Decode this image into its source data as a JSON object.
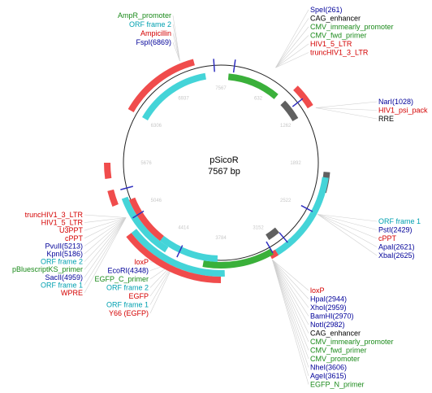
{
  "plasmid": {
    "name": "pSicoR",
    "length": "7567 bp"
  },
  "ticks": [
    "7567",
    "632",
    "1262",
    "1892",
    "2522",
    "3152",
    "3784",
    "4414",
    "5046",
    "5676",
    "6306",
    "6937"
  ],
  "colors": {
    "promoter": "#1a8a1a",
    "enzyme": "#000099",
    "orf": "#00a0b0",
    "marker": "#d40000",
    "misc": "#000000",
    "feature_orf": "#44d4d8",
    "feature_red": "#f04c4c",
    "feature_green": "#3ab03a",
    "feature_gray": "#606060"
  },
  "labels_top_left": [
    {
      "text": "AmpR_promoter",
      "kind": "promoter"
    },
    {
      "text": "ORF frame 2",
      "kind": "orf"
    },
    {
      "text": "Ampicillin",
      "kind": "marker"
    },
    {
      "text": "FspI(6869)",
      "kind": "enzyme"
    }
  ],
  "labels_top_right": [
    {
      "text": "SpeI(261)",
      "kind": "enzyme"
    },
    {
      "text": "CAG_enhancer",
      "kind": "misc"
    },
    {
      "text": "CMV_immearly_promoter",
      "kind": "promoter"
    },
    {
      "text": "CMV_fwd_primer",
      "kind": "promoter"
    },
    {
      "text": "HIV1_5_LTR",
      "kind": "marker"
    },
    {
      "text": "truncHIV1_3_LTR",
      "kind": "marker"
    }
  ],
  "labels_right_upper": [
    {
      "text": "NarI(1028)",
      "kind": "enzyme"
    },
    {
      "text": "HIV1_psi_pack",
      "kind": "marker"
    },
    {
      "text": "RRE",
      "kind": "misc"
    }
  ],
  "labels_right_mid": [
    {
      "text": "ORF frame 1",
      "kind": "orf"
    },
    {
      "text": "PstI(2429)",
      "kind": "enzyme"
    },
    {
      "text": "cPPT",
      "kind": "marker"
    },
    {
      "text": "ApaI(2621)",
      "kind": "enzyme"
    },
    {
      "text": "XbaI(2625)",
      "kind": "enzyme"
    }
  ],
  "labels_bottom_right": [
    {
      "text": "loxP",
      "kind": "marker"
    },
    {
      "text": "HpaI(2944)",
      "kind": "enzyme"
    },
    {
      "text": "XhoI(2959)",
      "kind": "enzyme"
    },
    {
      "text": "BamHI(2970)",
      "kind": "enzyme"
    },
    {
      "text": "NotI(2982)",
      "kind": "enzyme"
    },
    {
      "text": "CAG_enhancer",
      "kind": "misc"
    },
    {
      "text": "CMV_immearly_promoter",
      "kind": "promoter"
    },
    {
      "text": "CMV_fwd_primer",
      "kind": "promoter"
    },
    {
      "text": "CMV_promoter",
      "kind": "promoter"
    },
    {
      "text": "NheI(3606)",
      "kind": "enzyme"
    },
    {
      "text": "AgeI(3615)",
      "kind": "enzyme"
    },
    {
      "text": "EGFP_N_primer",
      "kind": "promoter"
    }
  ],
  "labels_left": [
    {
      "text": "truncHIV1_3_LTR",
      "kind": "marker"
    },
    {
      "text": "HIV1_5_LTR",
      "kind": "marker"
    },
    {
      "text": "U3PPT",
      "kind": "marker"
    },
    {
      "text": "cPPT",
      "kind": "marker"
    },
    {
      "text": "PvuII(5213)",
      "kind": "enzyme"
    },
    {
      "text": "KpnI(5186)",
      "kind": "enzyme"
    },
    {
      "text": "ORF frame 2",
      "kind": "orf"
    },
    {
      "text": "pBluescriptKS_primer",
      "kind": "promoter"
    },
    {
      "text": "SacII(4959)",
      "kind": "enzyme"
    },
    {
      "text": "ORF frame 1",
      "kind": "orf"
    },
    {
      "text": "WPRE",
      "kind": "marker"
    }
  ],
  "labels_bottom_left": [
    {
      "text": "loxP",
      "kind": "marker"
    },
    {
      "text": "EcoRI(4348)",
      "kind": "enzyme"
    },
    {
      "text": "EGFP_C_primer",
      "kind": "promoter"
    },
    {
      "text": "ORF frame 2",
      "kind": "orf"
    },
    {
      "text": "EGFP",
      "kind": "marker"
    },
    {
      "text": "ORF frame 1",
      "kind": "orf"
    },
    {
      "text": "Y66 (EGFP)",
      "kind": "marker"
    }
  ]
}
